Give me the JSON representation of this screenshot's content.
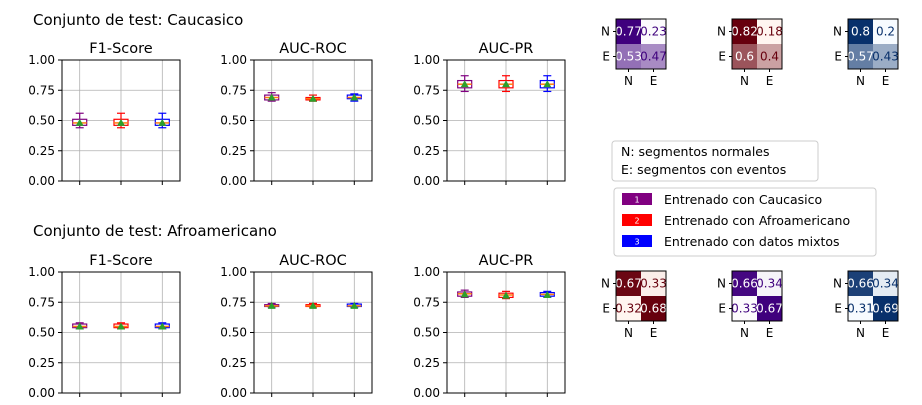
{
  "figure": {
    "row_titles": [
      "Conjunto de test: Caucasico",
      "Conjunto de test: Afroamericano"
    ],
    "legend_notes": [
      "N: segmentos normales",
      "E: segmentos con eventos"
    ],
    "legend_entries": [
      {
        "marker": "1",
        "label": "Entrenado con Caucasico",
        "color": "#800080"
      },
      {
        "marker": "2",
        "label": "Entrenado con Afroamericano",
        "color": "#ff0000"
      },
      {
        "marker": "3",
        "label": "Entrenado con datos mixtos",
        "color": "#0000ff"
      }
    ],
    "mean_marker_color": "#2ca02c"
  },
  "chart_data": [
    {
      "type": "box",
      "title": "F1-Score",
      "test_set": "Caucasico",
      "ylim": [
        0,
        1
      ],
      "yticks": [
        "0.00",
        "0.25",
        "0.50",
        "0.75",
        "1.00"
      ],
      "grid": true,
      "series": [
        {
          "name": "Entrenado con Caucasico",
          "whisker_low": 0.44,
          "q1": 0.46,
          "median": 0.48,
          "q3": 0.51,
          "whisker_high": 0.56,
          "mean": 0.48
        },
        {
          "name": "Entrenado con Afroamericano",
          "whisker_low": 0.44,
          "q1": 0.46,
          "median": 0.48,
          "q3": 0.51,
          "whisker_high": 0.56,
          "mean": 0.48
        },
        {
          "name": "Entrenado con datos mixtos",
          "whisker_low": 0.44,
          "q1": 0.46,
          "median": 0.48,
          "q3": 0.51,
          "whisker_high": 0.56,
          "mean": 0.48
        }
      ]
    },
    {
      "type": "box",
      "title": "AUC-ROC",
      "test_set": "Caucasico",
      "ylim": [
        0,
        1
      ],
      "yticks": [
        "0.00",
        "0.25",
        "0.50",
        "0.75",
        "1.00"
      ],
      "grid": true,
      "series": [
        {
          "name": "Entrenado con Caucasico",
          "whisker_low": 0.66,
          "q1": 0.67,
          "median": 0.69,
          "q3": 0.71,
          "whisker_high": 0.73,
          "mean": 0.69
        },
        {
          "name": "Entrenado con Afroamericano",
          "whisker_low": 0.66,
          "q1": 0.67,
          "median": 0.68,
          "q3": 0.69,
          "whisker_high": 0.71,
          "mean": 0.68
        },
        {
          "name": "Entrenado con datos mixtos",
          "whisker_low": 0.66,
          "q1": 0.68,
          "median": 0.69,
          "q3": 0.71,
          "whisker_high": 0.72,
          "mean": 0.69
        }
      ]
    },
    {
      "type": "box",
      "title": "AUC-PR",
      "test_set": "Caucasico",
      "ylim": [
        0,
        1
      ],
      "yticks": [
        "0.00",
        "0.25",
        "0.50",
        "0.75",
        "1.00"
      ],
      "grid": true,
      "series": [
        {
          "name": "Entrenado con Caucasico",
          "whisker_low": 0.74,
          "q1": 0.77,
          "median": 0.8,
          "q3": 0.83,
          "whisker_high": 0.87,
          "mean": 0.8
        },
        {
          "name": "Entrenado con Afroamericano",
          "whisker_low": 0.74,
          "q1": 0.77,
          "median": 0.8,
          "q3": 0.83,
          "whisker_high": 0.87,
          "mean": 0.8
        },
        {
          "name": "Entrenado con datos mixtos",
          "whisker_low": 0.74,
          "q1": 0.77,
          "median": 0.8,
          "q3": 0.83,
          "whisker_high": 0.87,
          "mean": 0.8
        }
      ]
    },
    {
      "type": "box",
      "title": "F1-Score",
      "test_set": "Afroamericano",
      "ylim": [
        0,
        1
      ],
      "yticks": [
        "0.00",
        "0.25",
        "0.50",
        "0.75",
        "1.00"
      ],
      "grid": true,
      "series": [
        {
          "name": "Entrenado con Caucasico",
          "whisker_low": 0.53,
          "q1": 0.54,
          "median": 0.55,
          "q3": 0.57,
          "whisker_high": 0.58,
          "mean": 0.55
        },
        {
          "name": "Entrenado con Afroamericano",
          "whisker_low": 0.53,
          "q1": 0.54,
          "median": 0.55,
          "q3": 0.57,
          "whisker_high": 0.58,
          "mean": 0.55
        },
        {
          "name": "Entrenado con datos mixtos",
          "whisker_low": 0.53,
          "q1": 0.54,
          "median": 0.55,
          "q3": 0.57,
          "whisker_high": 0.58,
          "mean": 0.55
        }
      ]
    },
    {
      "type": "box",
      "title": "AUC-ROC",
      "test_set": "Afroamericano",
      "ylim": [
        0,
        1
      ],
      "yticks": [
        "0.00",
        "0.25",
        "0.50",
        "0.75",
        "1.00"
      ],
      "grid": true,
      "series": [
        {
          "name": "Entrenado con Caucasico",
          "whisker_low": 0.71,
          "q1": 0.715,
          "median": 0.72,
          "q3": 0.73,
          "whisker_high": 0.74,
          "mean": 0.72
        },
        {
          "name": "Entrenado con Afroamericano",
          "whisker_low": 0.71,
          "q1": 0.715,
          "median": 0.72,
          "q3": 0.73,
          "whisker_high": 0.74,
          "mean": 0.72
        },
        {
          "name": "Entrenado con datos mixtos",
          "whisker_low": 0.71,
          "q1": 0.715,
          "median": 0.72,
          "q3": 0.735,
          "whisker_high": 0.74,
          "mean": 0.72
        }
      ]
    },
    {
      "type": "box",
      "title": "AUC-PR",
      "test_set": "Afroamericano",
      "ylim": [
        0,
        1
      ],
      "yticks": [
        "0.00",
        "0.25",
        "0.50",
        "0.75",
        "1.00"
      ],
      "grid": true,
      "series": [
        {
          "name": "Entrenado con Caucasico",
          "whisker_low": 0.79,
          "q1": 0.8,
          "median": 0.82,
          "q3": 0.835,
          "whisker_high": 0.85,
          "mean": 0.815
        },
        {
          "name": "Entrenado con Afroamericano",
          "whisker_low": 0.78,
          "q1": 0.79,
          "median": 0.81,
          "q3": 0.825,
          "whisker_high": 0.84,
          "mean": 0.805
        },
        {
          "name": "Entrenado con datos mixtos",
          "whisker_low": 0.79,
          "q1": 0.8,
          "median": 0.815,
          "q3": 0.83,
          "whisker_high": 0.84,
          "mean": 0.81
        }
      ]
    },
    {
      "type": "heatmap",
      "test_set": "Caucasico",
      "trained": "Entrenado con Caucasico",
      "cmap": "purples",
      "rows": [
        "N",
        "E"
      ],
      "cols": [
        "N",
        "E"
      ],
      "values": [
        [
          0.77,
          0.23
        ],
        [
          0.53,
          0.47
        ]
      ]
    },
    {
      "type": "heatmap",
      "test_set": "Caucasico",
      "trained": "Entrenado con Afroamericano",
      "cmap": "reds",
      "rows": [
        "N",
        "E"
      ],
      "cols": [
        "N",
        "E"
      ],
      "values": [
        [
          0.82,
          0.18
        ],
        [
          0.6,
          0.4
        ]
      ]
    },
    {
      "type": "heatmap",
      "test_set": "Caucasico",
      "trained": "Entrenado con datos mixtos",
      "cmap": "blues",
      "rows": [
        "N",
        "E"
      ],
      "cols": [
        "N",
        "E"
      ],
      "values": [
        [
          0.8,
          0.2
        ],
        [
          0.57,
          0.43
        ]
      ]
    },
    {
      "type": "heatmap",
      "test_set": "Afroamericano",
      "trained": "Entrenado con Caucasico",
      "cmap": "reds",
      "rows": [
        "N",
        "E"
      ],
      "cols": [
        "N",
        "E"
      ],
      "values": [
        [
          0.67,
          0.33
        ],
        [
          0.32,
          0.68
        ]
      ]
    },
    {
      "type": "heatmap",
      "test_set": "Afroamericano",
      "trained": "Entrenado con Afroamericano",
      "cmap": "purples",
      "rows": [
        "N",
        "E"
      ],
      "cols": [
        "N",
        "E"
      ],
      "values": [
        [
          0.66,
          0.34
        ],
        [
          0.33,
          0.67
        ]
      ]
    },
    {
      "type": "heatmap",
      "test_set": "Afroamericano",
      "trained": "Entrenado con datos mixtos",
      "cmap": "blues",
      "rows": [
        "N",
        "E"
      ],
      "cols": [
        "N",
        "E"
      ],
      "values": [
        [
          0.66,
          0.34
        ],
        [
          0.31,
          0.69
        ]
      ]
    }
  ]
}
